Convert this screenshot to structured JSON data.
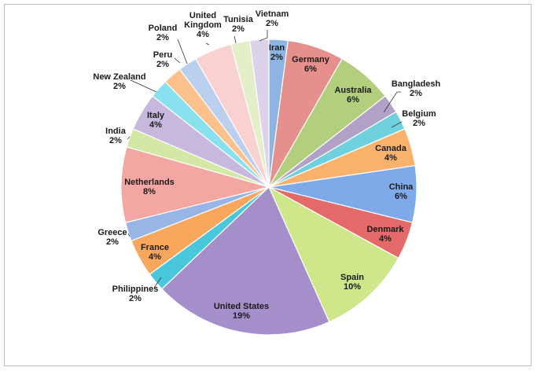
{
  "chart_data": {
    "type": "pie",
    "slices": [
      {
        "label": "Iran",
        "value": "2%",
        "pct": 2,
        "color": "#8DB4E2"
      },
      {
        "label": "Germany",
        "value": "6%",
        "pct": 6,
        "color": "#E6908E"
      },
      {
        "label": "Australia",
        "value": "6%",
        "pct": 6,
        "color": "#B3CF7D"
      },
      {
        "label": "Bangladesh",
        "value": "2%",
        "pct": 2,
        "color": "#B2A1C7"
      },
      {
        "label": "Belgium",
        "value": "2%",
        "pct": 2,
        "color": "#6FD0DE"
      },
      {
        "label": "Canada",
        "value": "4%",
        "pct": 4,
        "color": "#F9B26B"
      },
      {
        "label": "China",
        "value": "6%",
        "pct": 6,
        "color": "#7FAAEA"
      },
      {
        "label": "Denmark",
        "value": "4%",
        "pct": 4,
        "color": "#E36A69"
      },
      {
        "label": "Spain",
        "value": "10%",
        "pct": 10,
        "color": "#CDE78A"
      },
      {
        "label": "United States",
        "value": "19%",
        "pct": 19,
        "color": "#A48FCB"
      },
      {
        "label": "Philippines",
        "value": "2%",
        "pct": 2,
        "color": "#49C7DB"
      },
      {
        "label": "France",
        "value": "4%",
        "pct": 4,
        "color": "#F9A75C"
      },
      {
        "label": "Greece",
        "value": "2%",
        "pct": 2,
        "color": "#97B6E6"
      },
      {
        "label": "Netherlands",
        "value": "8%",
        "pct": 8,
        "color": "#F4A6A3"
      },
      {
        "label": "India",
        "value": "2%",
        "pct": 2,
        "color": "#D4E8A6"
      },
      {
        "label": "Italy",
        "value": "4%",
        "pct": 4,
        "color": "#C7B9DD"
      },
      {
        "label": "New Zealand",
        "value": "2%",
        "pct": 2,
        "color": "#89E0EE"
      },
      {
        "label": "Peru",
        "value": "2%",
        "pct": 2,
        "color": "#FBC28D"
      },
      {
        "label": "Poland",
        "value": "2%",
        "pct": 2,
        "color": "#BBD0EE"
      },
      {
        "label": "United Kingdom",
        "value": "4%",
        "pct": 4,
        "color": "#F8D1D0"
      },
      {
        "label": "Tunisia",
        "value": "2%",
        "pct": 2,
        "color": "#E3EFC9"
      },
      {
        "label": "Vietnam",
        "value": "2%",
        "pct": 2,
        "color": "#DCD3EA"
      }
    ]
  }
}
